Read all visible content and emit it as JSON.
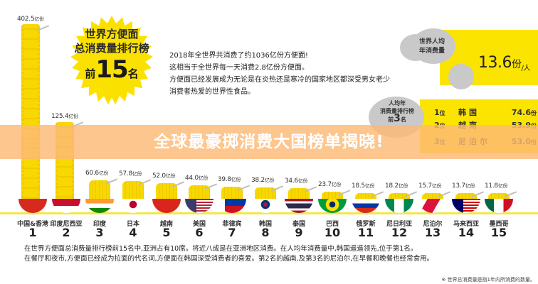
{
  "header": {
    "star_line1": "世界方便面",
    "star_line2": "总消费量排行榜",
    "star_prefix": "前",
    "star_number": "15",
    "star_suffix": "名"
  },
  "intro": {
    "lines": [
      "2018年全世界共消费了约1036亿份方便面!",
      "这相当于全世界每一天消费2.8亿份方便面。",
      "方便面已经发展成为无论是在炎热还是寒冷的国家地区都深受男女老少",
      "消费者热爱的世界性食品。"
    ]
  },
  "per_capita": {
    "cloud_line1": "世界人均",
    "cloud_line2": "年消费量",
    "value": "13.6",
    "unit": "份",
    "per": "人"
  },
  "per_capita_ranking": {
    "cloud_line1": "人均年",
    "cloud_line2": "消费量排行榜",
    "cloud_line3_prefix": "前",
    "cloud_line3_number": "3",
    "cloud_line3_suffix": "名",
    "rows": [
      {
        "position": "1",
        "pos_unit": "位",
        "country": "韩国",
        "value": "74.6",
        "unit": "份"
      },
      {
        "position": "2",
        "pos_unit": "位",
        "country": "越南",
        "value": "53.9",
        "unit": "份"
      },
      {
        "position": "3",
        "pos_unit": "位",
        "country": "尼泊尔",
        "value": "53.0",
        "unit": "份"
      }
    ]
  },
  "banner": {
    "title": "全球最豪掷消费大国榜单揭晓!"
  },
  "chart_data": {
    "type": "bar",
    "title": "世界方便面总消费量排行榜 前15名",
    "xlabel": "",
    "ylabel": "亿份",
    "categories": [
      "中国&香港",
      "印度尼西亚",
      "印度",
      "日本",
      "越南",
      "美国",
      "菲律宾",
      "韩国",
      "泰国",
      "巴西",
      "俄罗斯",
      "尼日利亚",
      "尼泊尔",
      "马来西亚",
      "墨西哥"
    ],
    "ranks": [
      "1",
      "2",
      "3",
      "4",
      "5",
      "6",
      "7",
      "8",
      "9",
      "10",
      "11",
      "12",
      "13",
      "14",
      "15"
    ],
    "values": [
      402.5,
      125.4,
      60.6,
      57.8,
      52.0,
      44.0,
      39.8,
      38.2,
      34.6,
      23.7,
      18.5,
      18.2,
      15.7,
      13.7,
      11.8
    ],
    "value_labels": [
      "402.5",
      "125.4",
      "60.6",
      "57.8",
      "52.0",
      "44.0",
      "39.8",
      "38.2",
      "34.6",
      "23.7",
      "18.5",
      "18.2",
      "15.7",
      "13.7",
      "11.8"
    ],
    "unit": "亿份",
    "grid": false,
    "legend": "none"
  },
  "summary": {
    "line1": "在世界方便面总消费量排行榜前15名中,亚洲占有10席。将近八成是在亚洲地区消费。在人均年消费量中,韩国遥遥领先,位于第1名。",
    "line2": "在餐厅和夜市,方便面已经成为拉面的代名词,方便面在韩国深受消费者的喜爱。第2名的越南,及第3名的尼泊尔,在早餐和晚餐也经常食用。"
  },
  "footnote": "※ 世界总消费量是指1年内所消费的数量。",
  "colors": {
    "noodle_yellow": "#f7d800",
    "banner_orange": "#fcba76",
    "cloud_gray": "#c9c9c9",
    "highlight_yellow": "#fbe400"
  }
}
